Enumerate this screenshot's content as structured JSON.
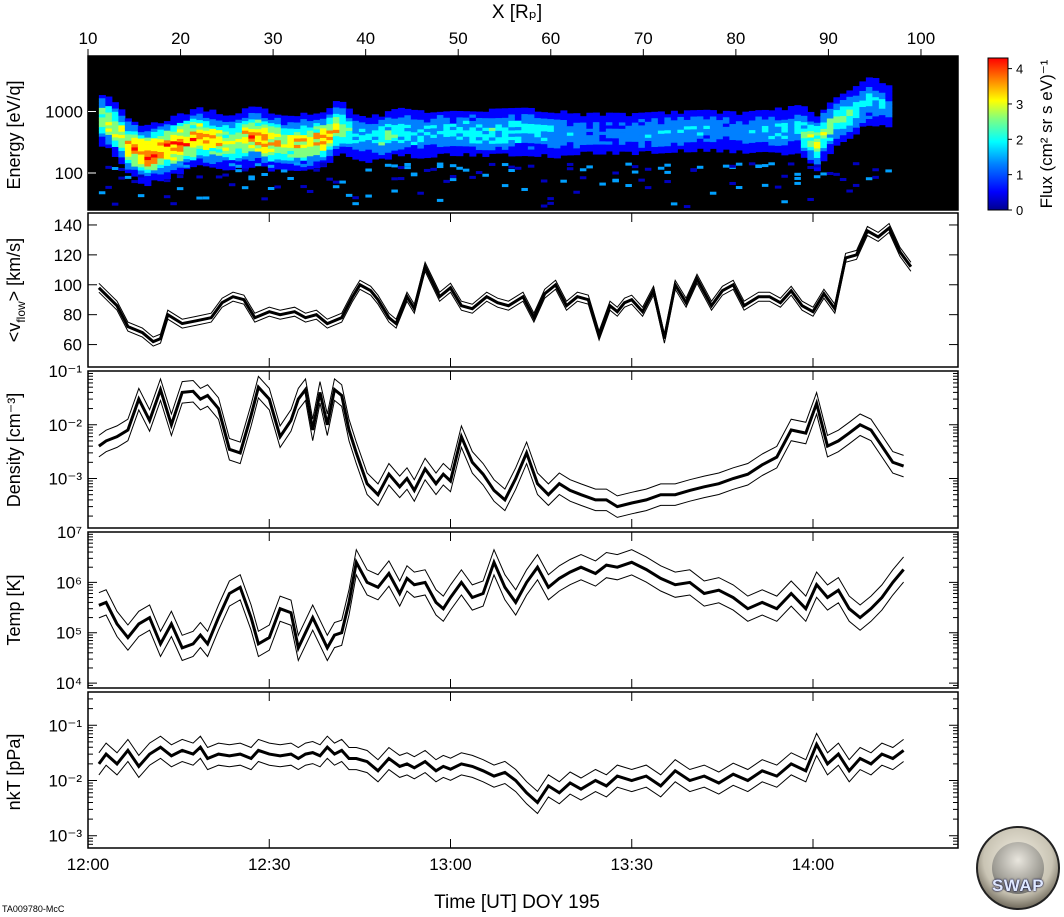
{
  "credit": "TA009780-McC",
  "logo_text": "SWAP",
  "chart_data": {
    "type": "line",
    "top_axis": {
      "label": "X [Rₚ]",
      "ticks": [
        10,
        20,
        30,
        40,
        50,
        60,
        70,
        80,
        90,
        100
      ],
      "range": [
        10,
        104
      ]
    },
    "bottom_axis": {
      "label": "Time [UT] DOY 195",
      "tick_labels": [
        "12:00",
        "12:30",
        "13:00",
        "13:30",
        "14:00"
      ],
      "tick_hours": [
        12.0,
        12.5,
        13.0,
        13.5,
        14.0
      ],
      "range": [
        12.0,
        14.4
      ]
    },
    "spectrogram": {
      "type": "heatmap",
      "ylabel": "Energy [eV/q]",
      "y_tick_labels": [
        "100",
        "1000"
      ],
      "y_ticks": [
        100,
        1000
      ],
      "y_range_log": [
        25,
        8000
      ],
      "colorbar_label": "Flux (cm² sr s eV)⁻¹",
      "colorbar_ticks": [
        "0",
        "1",
        "2",
        "3",
        "4"
      ],
      "colorbar_range": [
        0,
        4.3
      ],
      "colormap": [
        "#00008f",
        "#0000ff",
        "#0080ff",
        "#00ffff",
        "#80ff80",
        "#ffff00",
        "#ff8000",
        "#ff0000"
      ],
      "band_x": [
        12.03,
        12.1,
        12.15,
        12.22,
        12.3,
        12.38,
        12.45,
        12.5,
        12.53,
        12.58,
        12.65,
        12.68,
        12.72,
        12.77,
        12.8,
        12.85,
        12.9,
        13.0,
        13.1,
        13.2,
        13.3,
        13.4,
        13.5,
        13.6,
        13.7,
        13.8,
        13.85,
        13.9,
        13.95,
        14.0,
        14.05,
        14.1,
        14.15,
        14.2
      ],
      "band_energy": [
        800,
        300,
        200,
        280,
        400,
        320,
        420,
        350,
        330,
        320,
        380,
        600,
        450,
        380,
        400,
        500,
        450,
        500,
        480,
        500,
        450,
        470,
        460,
        500,
        520,
        480,
        520,
        500,
        550,
        300,
        700,
        1000,
        1600,
        1300
      ],
      "band_flux": [
        2.5,
        3.2,
        3.8,
        3.6,
        3.4,
        2.6,
        3.5,
        3.2,
        2.8,
        3.0,
        3.2,
        3.0,
        1.8,
        1.6,
        2.0,
        2.0,
        1.8,
        1.6,
        1.9,
        1.7,
        1.5,
        1.2,
        1.4,
        1.5,
        1.4,
        1.3,
        1.5,
        1.6,
        1.8,
        2.8,
        2.2,
        2.0,
        1.8,
        1.4
      ]
    },
    "panels": [
      {
        "name": "flow",
        "ylabel_html": "<v_flow> [km/s]",
        "ylabel_main": "<v",
        "ylabel_sub": "flow",
        "ylabel_end": "> [km/s]",
        "scale": "linear",
        "y_range": [
          45,
          148
        ],
        "y_ticks": [
          60,
          80,
          100,
          120,
          140
        ],
        "y_tick_labels": [
          "60",
          "80",
          "100",
          "120",
          "140"
        ],
        "x": [
          12.03,
          12.08,
          12.11,
          12.15,
          12.18,
          12.2,
          12.22,
          12.26,
          12.3,
          12.34,
          12.37,
          12.4,
          12.43,
          12.46,
          12.5,
          12.53,
          12.57,
          12.6,
          12.63,
          12.66,
          12.7,
          12.73,
          12.75,
          12.78,
          12.8,
          12.83,
          12.85,
          12.88,
          12.9,
          12.93,
          12.97,
          13.0,
          13.03,
          13.06,
          13.1,
          13.13,
          13.16,
          13.2,
          13.23,
          13.26,
          13.29,
          13.32,
          13.35,
          13.38,
          13.41,
          13.44,
          13.46,
          13.48,
          13.5,
          13.53,
          13.56,
          13.59,
          13.62,
          13.65,
          13.68,
          13.72,
          13.75,
          13.78,
          13.81,
          13.85,
          13.88,
          13.91,
          13.94,
          13.97,
          14.0,
          14.03,
          14.06,
          14.09,
          14.12,
          14.15,
          14.18,
          14.21,
          14.24,
          14.27
        ],
        "y": [
          98,
          86,
          72,
          68,
          62,
          64,
          80,
          74,
          76,
          78,
          88,
          92,
          90,
          78,
          82,
          80,
          82,
          78,
          80,
          74,
          78,
          92,
          100,
          96,
          90,
          78,
          74,
          92,
          84,
          112,
          92,
          98,
          86,
          84,
          92,
          88,
          86,
          92,
          78,
          94,
          100,
          86,
          92,
          90,
          66,
          86,
          82,
          88,
          90,
          82,
          96,
          64,
          100,
          88,
          104,
          86,
          96,
          100,
          86,
          92,
          92,
          88,
          96,
          86,
          82,
          94,
          84,
          118,
          120,
          136,
          132,
          138,
          122,
          112
        ],
        "band": 3
      },
      {
        "name": "density",
        "ylabel": "Density [cm⁻³]",
        "scale": "log",
        "y_range": [
          0.00012,
          0.1
        ],
        "y_ticks": [
          0.001,
          0.01,
          0.1
        ],
        "y_tick_labels": [
          "10⁻³",
          "10⁻²",
          "10⁻¹"
        ],
        "x": [
          12.03,
          12.05,
          12.08,
          12.11,
          12.14,
          12.17,
          12.2,
          12.23,
          12.26,
          12.29,
          12.31,
          12.33,
          12.36,
          12.39,
          12.42,
          12.45,
          12.47,
          12.5,
          12.53,
          12.56,
          12.58,
          12.6,
          12.62,
          12.64,
          12.66,
          12.68,
          12.7,
          12.72,
          12.74,
          12.77,
          12.8,
          12.83,
          12.86,
          12.88,
          12.9,
          12.93,
          12.96,
          12.98,
          13.0,
          13.03,
          13.06,
          13.09,
          13.12,
          13.15,
          13.18,
          13.21,
          13.24,
          13.27,
          13.3,
          13.33,
          13.36,
          13.4,
          13.43,
          13.46,
          13.5,
          13.54,
          13.58,
          13.62,
          13.66,
          13.7,
          13.74,
          13.78,
          13.82,
          13.86,
          13.9,
          13.94,
          13.98,
          14.01,
          14.04,
          14.07,
          14.1,
          14.13,
          14.16,
          14.19,
          14.22,
          14.25
        ],
        "y": [
          0.004,
          0.005,
          0.006,
          0.008,
          0.03,
          0.012,
          0.045,
          0.01,
          0.04,
          0.042,
          0.03,
          0.035,
          0.02,
          0.0035,
          0.003,
          0.015,
          0.05,
          0.03,
          0.006,
          0.012,
          0.03,
          0.045,
          0.008,
          0.04,
          0.01,
          0.045,
          0.035,
          0.008,
          0.003,
          0.0008,
          0.0005,
          0.0012,
          0.0007,
          0.001,
          0.0006,
          0.0015,
          0.0008,
          0.0012,
          0.0009,
          0.006,
          0.002,
          0.0012,
          0.0006,
          0.0004,
          0.001,
          0.003,
          0.0008,
          0.0005,
          0.0008,
          0.0006,
          0.0005,
          0.0004,
          0.0004,
          0.0003,
          0.00035,
          0.0004,
          0.0005,
          0.0005,
          0.0006,
          0.0007,
          0.0008,
          0.001,
          0.0012,
          0.0018,
          0.0025,
          0.008,
          0.007,
          0.025,
          0.004,
          0.005,
          0.007,
          0.01,
          0.008,
          0.004,
          0.002,
          0.0017
        ],
        "band": 0.2
      },
      {
        "name": "temp",
        "ylabel": "Temp [K]",
        "scale": "log",
        "y_range": [
          8000,
          10000000
        ],
        "y_ticks": [
          10000,
          100000,
          1000000,
          10000000
        ],
        "y_tick_labels": [
          "10⁴",
          "10⁵",
          "10⁶",
          "10⁷"
        ],
        "x": [
          12.03,
          12.05,
          12.08,
          12.11,
          12.14,
          12.17,
          12.2,
          12.23,
          12.26,
          12.29,
          12.31,
          12.33,
          12.36,
          12.39,
          12.42,
          12.45,
          12.47,
          12.5,
          12.53,
          12.56,
          12.58,
          12.6,
          12.62,
          12.64,
          12.66,
          12.68,
          12.7,
          12.72,
          12.74,
          12.77,
          12.8,
          12.83,
          12.86,
          12.88,
          12.9,
          12.93,
          12.96,
          12.98,
          13.0,
          13.03,
          13.06,
          13.09,
          13.12,
          13.15,
          13.18,
          13.21,
          13.24,
          13.27,
          13.3,
          13.33,
          13.36,
          13.4,
          13.43,
          13.46,
          13.5,
          13.54,
          13.58,
          13.62,
          13.66,
          13.7,
          13.74,
          13.78,
          13.82,
          13.86,
          13.9,
          13.94,
          13.98,
          14.01,
          14.04,
          14.07,
          14.1,
          14.13,
          14.16,
          14.19,
          14.22,
          14.25
        ],
        "y": [
          350000,
          400000,
          150000,
          80000,
          150000,
          200000,
          60000,
          150000,
          50000,
          60000,
          90000,
          60000,
          200000,
          600000,
          800000,
          200000,
          60000,
          80000,
          300000,
          250000,
          50000,
          100000,
          200000,
          100000,
          50000,
          90000,
          100000,
          400000,
          2500000,
          1000000,
          800000,
          1500000,
          600000,
          1200000,
          900000,
          1000000,
          400000,
          300000,
          500000,
          1000000,
          500000,
          600000,
          2500000,
          800000,
          400000,
          1000000,
          2000000,
          800000,
          1200000,
          1600000,
          2000000,
          1500000,
          2200000,
          2000000,
          2500000,
          1800000,
          1200000,
          900000,
          1000000,
          600000,
          700000,
          500000,
          300000,
          400000,
          300000,
          600000,
          300000,
          900000,
          500000,
          700000,
          300000,
          200000,
          300000,
          500000,
          1000000,
          1800000
        ],
        "band": 0.25
      },
      {
        "name": "pressure",
        "ylabel": "nkT [pPa]",
        "scale": "log",
        "y_range": [
          0.0006,
          0.4
        ],
        "y_ticks": [
          0.001,
          0.01,
          0.1
        ],
        "y_tick_labels": [
          "10⁻³",
          "10⁻²",
          "10⁻¹"
        ],
        "x": [
          12.03,
          12.05,
          12.08,
          12.11,
          12.14,
          12.17,
          12.2,
          12.23,
          12.26,
          12.29,
          12.31,
          12.33,
          12.36,
          12.39,
          12.42,
          12.45,
          12.47,
          12.5,
          12.53,
          12.56,
          12.58,
          12.6,
          12.62,
          12.64,
          12.66,
          12.68,
          12.7,
          12.72,
          12.74,
          12.77,
          12.8,
          12.83,
          12.86,
          12.88,
          12.9,
          12.93,
          12.96,
          12.98,
          13.0,
          13.03,
          13.06,
          13.09,
          13.12,
          13.15,
          13.18,
          13.21,
          13.24,
          13.27,
          13.3,
          13.33,
          13.36,
          13.4,
          13.43,
          13.46,
          13.5,
          13.54,
          13.58,
          13.62,
          13.66,
          13.7,
          13.74,
          13.78,
          13.82,
          13.86,
          13.9,
          13.94,
          13.98,
          14.01,
          14.04,
          14.07,
          14.1,
          14.13,
          14.16,
          14.19,
          14.22,
          14.25
        ],
        "y": [
          0.02,
          0.03,
          0.02,
          0.035,
          0.018,
          0.03,
          0.04,
          0.028,
          0.035,
          0.03,
          0.04,
          0.025,
          0.03,
          0.028,
          0.03,
          0.025,
          0.035,
          0.03,
          0.028,
          0.03,
          0.025,
          0.03,
          0.032,
          0.028,
          0.04,
          0.03,
          0.035,
          0.025,
          0.025,
          0.022,
          0.015,
          0.025,
          0.018,
          0.02,
          0.017,
          0.022,
          0.015,
          0.018,
          0.016,
          0.02,
          0.018,
          0.015,
          0.012,
          0.014,
          0.01,
          0.006,
          0.004,
          0.008,
          0.006,
          0.009,
          0.007,
          0.01,
          0.008,
          0.012,
          0.01,
          0.012,
          0.008,
          0.015,
          0.01,
          0.012,
          0.009,
          0.013,
          0.01,
          0.015,
          0.012,
          0.02,
          0.015,
          0.045,
          0.02,
          0.03,
          0.015,
          0.025,
          0.02,
          0.03,
          0.025,
          0.035
        ],
        "band": 0.2
      }
    ]
  }
}
